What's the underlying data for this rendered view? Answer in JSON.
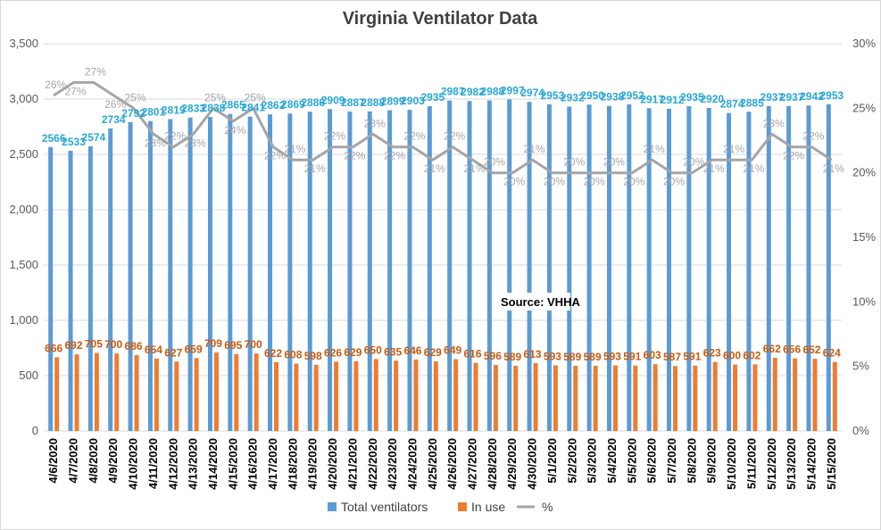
{
  "chart_data": {
    "type": "bar",
    "title": "Virginia Ventilator Data",
    "annotation": "Source: VHHA",
    "categories": [
      "4/6/2020",
      "4/7/2020",
      "4/8/2020",
      "4/9/2020",
      "4/10/2020",
      "4/11/2020",
      "4/12/2020",
      "4/13/2020",
      "4/14/2020",
      "4/15/2020",
      "4/16/2020",
      "4/17/2020",
      "4/18/2020",
      "4/19/2020",
      "4/20/2020",
      "4/21/2020",
      "4/22/2020",
      "4/23/2020",
      "4/24/2020",
      "4/25/2020",
      "4/26/2020",
      "4/27/2020",
      "4/28/2020",
      "4/29/2020",
      "4/30/2020",
      "5/1/2020",
      "5/2/2020",
      "5/3/2020",
      "5/4/2020",
      "5/5/2020",
      "5/6/2020",
      "5/7/2020",
      "5/8/2020",
      "5/9/2020",
      "5/10/2020",
      "5/11/2020",
      "5/12/2020",
      "5/13/2020",
      "5/14/2020",
      "5/15/2020"
    ],
    "series": [
      {
        "name": "Total ventilators",
        "type": "bar",
        "axis": "left",
        "color": "#5b9bd5",
        "values": [
          2566,
          2533,
          2574,
          2734,
          2792,
          2801,
          2819,
          2833,
          2838,
          2865,
          2841,
          2862,
          2869,
          2886,
          2909,
          2887,
          2888,
          2899,
          2903,
          2935,
          2987,
          2982,
          2988,
          2997,
          2974,
          2953,
          2932,
          2950,
          2938,
          2952,
          2917,
          2912,
          2935,
          2920,
          2874,
          2885,
          2937,
          2937,
          2942,
          2953
        ]
      },
      {
        "name": "In use",
        "type": "bar",
        "axis": "left",
        "color": "#ed7d31",
        "values": [
          666,
          692,
          705,
          700,
          686,
          654,
          627,
          659,
          709,
          695,
          700,
          622,
          608,
          598,
          626,
          629,
          650,
          635,
          646,
          629,
          649,
          616,
          596,
          589,
          613,
          593,
          589,
          589,
          593,
          591,
          603,
          587,
          591,
          623,
          600,
          602,
          662,
          656,
          652,
          624
        ]
      },
      {
        "name": "%",
        "type": "line",
        "axis": "right",
        "color": "#a5a5a5",
        "values": [
          26,
          27,
          27,
          26,
          25,
          23,
          22,
          23,
          25,
          24,
          25,
          22,
          21,
          21,
          22,
          22,
          23,
          22,
          22,
          21,
          22,
          21,
          20,
          20,
          21,
          20,
          20,
          20,
          20,
          20,
          21,
          20,
          20,
          21,
          21,
          21,
          23,
          22,
          22,
          21
        ]
      }
    ],
    "y_left": {
      "min": 0,
      "max": 3500,
      "ticks": [
        "0",
        "500",
        "1,000",
        "1,500",
        "2,000",
        "2,500",
        "3,000",
        "3,500"
      ]
    },
    "y_right": {
      "min": 0,
      "max": 30,
      "ticks": [
        "0%",
        "5%",
        "10%",
        "15%",
        "20%",
        "25%",
        "30%"
      ]
    },
    "grid": true,
    "legend": {
      "position": "bottom",
      "items": [
        "Total ventilators",
        "In use",
        "%"
      ]
    }
  }
}
